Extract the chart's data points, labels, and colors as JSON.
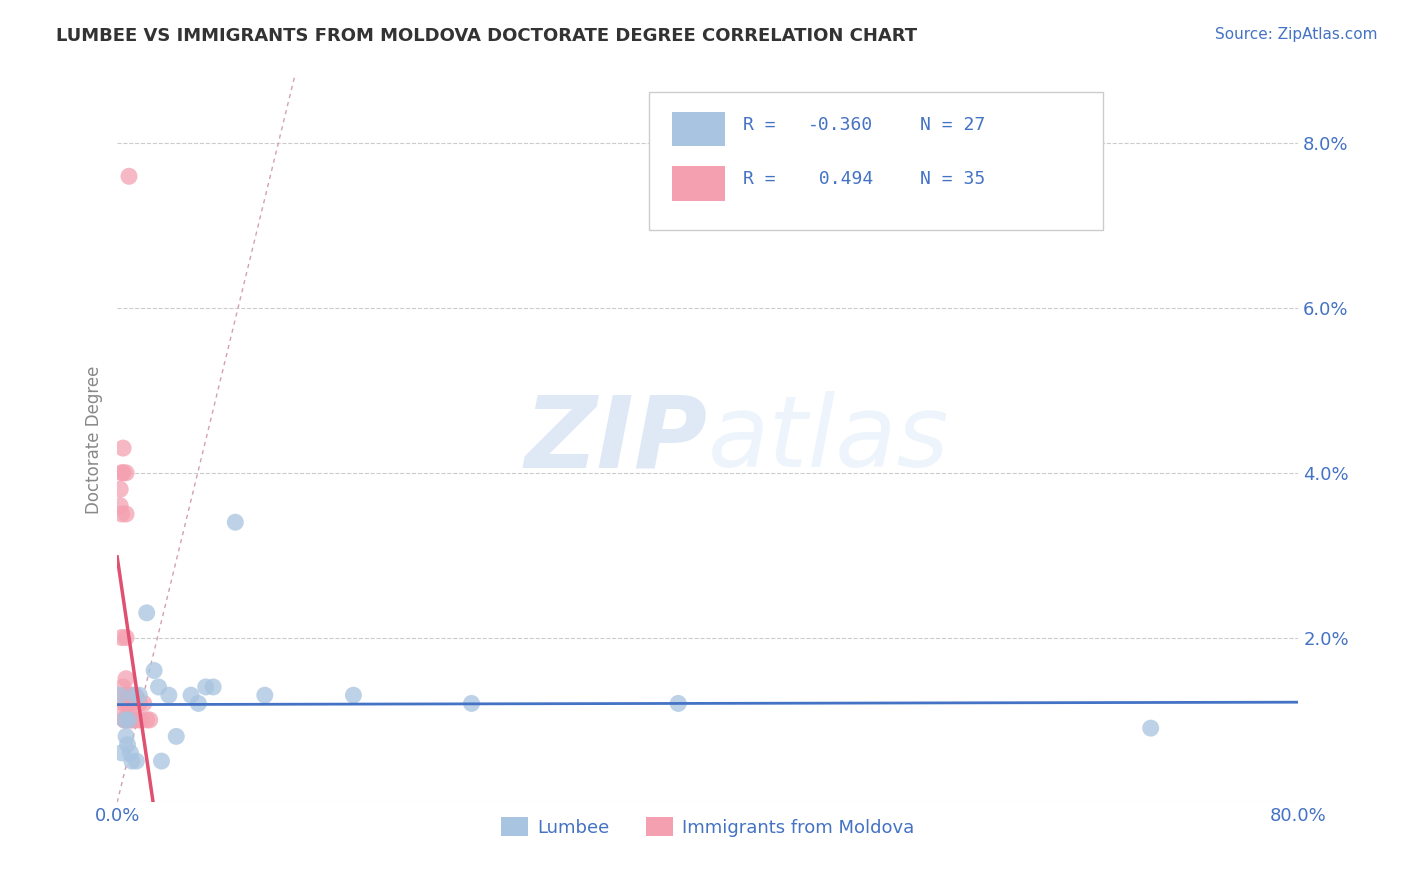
{
  "title": "LUMBEE VS IMMIGRANTS FROM MOLDOVA DOCTORATE DEGREE CORRELATION CHART",
  "source": "Source: ZipAtlas.com",
  "ylabel": "Doctorate Degree",
  "xlim": [
    0.0,
    0.8
  ],
  "ylim": [
    0.0,
    0.088
  ],
  "yticks": [
    0.0,
    0.02,
    0.04,
    0.06,
    0.08
  ],
  "ytick_labels": [
    "",
    "2.0%",
    "4.0%",
    "6.0%",
    "8.0%"
  ],
  "xticks": [
    0.0,
    0.1,
    0.2,
    0.3,
    0.4,
    0.5,
    0.6,
    0.7,
    0.8
  ],
  "xtick_labels": [
    "0.0%",
    "",
    "",
    "",
    "",
    "",
    "",
    "",
    "80.0%"
  ],
  "lumbee_R": -0.36,
  "lumbee_N": 27,
  "moldova_R": 0.494,
  "moldova_N": 35,
  "lumbee_color": "#a8c4e0",
  "moldova_color": "#f4a0b0",
  "lumbee_line_color": "#4472c4",
  "moldova_line_color": "#e05070",
  "watermark_zip": "ZIP",
  "watermark_atlas": "atlas",
  "lumbee_x": [
    0.002,
    0.003,
    0.005,
    0.006,
    0.007,
    0.008,
    0.009,
    0.01,
    0.012,
    0.013,
    0.015,
    0.02,
    0.025,
    0.028,
    0.03,
    0.035,
    0.04,
    0.05,
    0.055,
    0.06,
    0.065,
    0.08,
    0.1,
    0.16,
    0.24,
    0.38,
    0.7
  ],
  "lumbee_y": [
    0.013,
    0.006,
    0.01,
    0.008,
    0.007,
    0.01,
    0.006,
    0.005,
    0.013,
    0.005,
    0.013,
    0.023,
    0.016,
    0.014,
    0.005,
    0.013,
    0.008,
    0.013,
    0.012,
    0.014,
    0.014,
    0.034,
    0.013,
    0.013,
    0.012,
    0.012,
    0.009
  ],
  "moldova_x": [
    0.002,
    0.002,
    0.003,
    0.003,
    0.003,
    0.004,
    0.004,
    0.004,
    0.005,
    0.005,
    0.005,
    0.005,
    0.005,
    0.006,
    0.006,
    0.006,
    0.006,
    0.007,
    0.007,
    0.007,
    0.008,
    0.008,
    0.008,
    0.009,
    0.01,
    0.01,
    0.01,
    0.012,
    0.012,
    0.014,
    0.015,
    0.016,
    0.018,
    0.02,
    0.022
  ],
  "moldova_y": [
    0.038,
    0.036,
    0.04,
    0.035,
    0.02,
    0.043,
    0.04,
    0.014,
    0.013,
    0.012,
    0.011,
    0.01,
    0.01,
    0.04,
    0.035,
    0.02,
    0.015,
    0.013,
    0.012,
    0.01,
    0.013,
    0.012,
    0.011,
    0.01,
    0.013,
    0.012,
    0.01,
    0.013,
    0.01,
    0.01,
    0.012,
    0.01,
    0.012,
    0.01,
    0.01
  ],
  "moldova_outlier_x": [
    0.008
  ],
  "moldova_outlier_y": [
    0.076
  ]
}
